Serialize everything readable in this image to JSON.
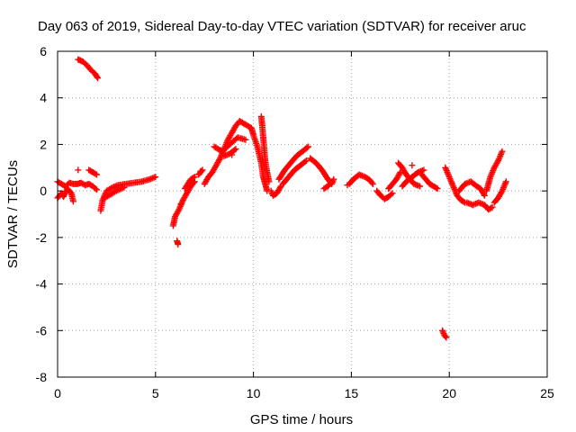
{
  "chart_data": {
    "type": "scatter",
    "title": "Day 063 of 2019, Sidereal Day-to-day VTEC variation (SDTVAR) for receiver aruc",
    "xlabel": "GPS time / hours",
    "ylabel": "SDTVAR / TECUs",
    "xlim": [
      0,
      25
    ],
    "ylim": [
      -8,
      6
    ],
    "xticks": [
      "0",
      "5",
      "10",
      "15",
      "20",
      "25"
    ],
    "yticks": [
      "-8",
      "-6",
      "-4",
      "-2",
      "0",
      "2",
      "4",
      "6"
    ],
    "grid": true,
    "marker": "plus",
    "color": "#ff0000",
    "series": [
      {
        "name": "SDTVAR",
        "segments": [
          [
            [
              0.0,
              0.4
            ],
            [
              0.2,
              0.3
            ],
            [
              0.4,
              0.2
            ],
            [
              0.6,
              0.35
            ],
            [
              0.8,
              0.3
            ],
            [
              1.0,
              0.3
            ],
            [
              1.2,
              0.35
            ],
            [
              1.4,
              0.25
            ],
            [
              1.6,
              0.3
            ],
            [
              1.8,
              0.2
            ],
            [
              2.0,
              0.05
            ]
          ],
          [
            [
              0.0,
              -0.3
            ],
            [
              0.2,
              -0.1
            ],
            [
              0.3,
              -0.25
            ],
            [
              0.5,
              0.1
            ],
            [
              0.7,
              -0.1
            ],
            [
              0.8,
              -0.45
            ]
          ],
          [
            [
              1.05,
              5.65
            ],
            [
              1.3,
              5.55
            ],
            [
              1.5,
              5.4
            ],
            [
              1.7,
              5.2
            ],
            [
              1.9,
              5.05
            ],
            [
              2.05,
              4.85
            ]
          ],
          [
            [
              1.6,
              0.9
            ],
            [
              1.8,
              0.8
            ],
            [
              2.0,
              0.7
            ]
          ],
          [
            [
              2.2,
              -0.85
            ],
            [
              2.3,
              -0.4
            ],
            [
              2.5,
              0.0
            ],
            [
              2.8,
              0.15
            ],
            [
              3.1,
              0.25
            ],
            [
              3.5,
              0.3
            ],
            [
              3.9,
              0.35
            ],
            [
              4.3,
              0.4
            ],
            [
              4.7,
              0.5
            ],
            [
              5.0,
              0.6
            ]
          ],
          [
            [
              2.4,
              -0.3
            ],
            [
              2.7,
              -0.15
            ],
            [
              3.0,
              0.0
            ],
            [
              3.4,
              0.15
            ]
          ],
          [
            [
              5.9,
              -1.5
            ],
            [
              6.0,
              -1.1
            ],
            [
              6.2,
              -0.8
            ],
            [
              6.4,
              -0.4
            ],
            [
              6.6,
              -0.1
            ],
            [
              6.8,
              0.2
            ],
            [
              7.0,
              0.4
            ]
          ],
          [
            [
              6.1,
              -2.15
            ],
            [
              6.15,
              -2.3
            ]
          ],
          [
            [
              6.5,
              0.1
            ],
            [
              6.8,
              0.5
            ],
            [
              7.0,
              0.6
            ]
          ],
          [
            [
              7.2,
              0.7
            ],
            [
              7.4,
              0.9
            ]
          ],
          [
            [
              7.5,
              0.3
            ],
            [
              7.7,
              0.6
            ],
            [
              7.9,
              0.8
            ],
            [
              8.1,
              1.1
            ],
            [
              8.3,
              1.4
            ],
            [
              8.5,
              1.8
            ],
            [
              8.7,
              2.2
            ],
            [
              8.9,
              2.5
            ],
            [
              9.1,
              2.8
            ],
            [
              9.3,
              3.0
            ],
            [
              9.5,
              2.9
            ],
            [
              9.7,
              2.8
            ],
            [
              9.9,
              2.7
            ],
            [
              10.0,
              2.4
            ],
            [
              10.2,
              1.9
            ],
            [
              10.4,
              1.2
            ],
            [
              10.5,
              0.6
            ],
            [
              10.6,
              0.3
            ],
            [
              10.7,
              0.0
            ]
          ],
          [
            [
              8.0,
              1.9
            ],
            [
              8.4,
              1.7
            ],
            [
              8.8,
              2.0
            ],
            [
              9.2,
              2.3
            ],
            [
              9.6,
              2.2
            ]
          ],
          [
            [
              8.5,
              1.5
            ],
            [
              8.8,
              1.6
            ],
            [
              9.1,
              1.8
            ]
          ],
          [
            [
              10.4,
              3.2
            ],
            [
              10.45,
              2.8
            ],
            [
              10.5,
              2.3
            ],
            [
              10.55,
              1.8
            ],
            [
              10.6,
              1.3
            ],
            [
              10.7,
              0.8
            ],
            [
              10.8,
              0.4
            ]
          ],
          [
            [
              10.9,
              0.0
            ],
            [
              11.0,
              -0.2
            ],
            [
              11.2,
              -0.1
            ],
            [
              11.4,
              0.2
            ]
          ],
          [
            [
              11.3,
              0.5
            ],
            [
              11.6,
              0.9
            ],
            [
              11.9,
              1.2
            ],
            [
              12.2,
              1.5
            ],
            [
              12.5,
              1.7
            ],
            [
              12.8,
              1.9
            ]
          ],
          [
            [
              11.5,
              0.3
            ],
            [
              11.8,
              0.6
            ],
            [
              12.1,
              0.9
            ],
            [
              12.4,
              1.1
            ],
            [
              12.7,
              1.3
            ]
          ],
          [
            [
              12.9,
              1.4
            ],
            [
              13.2,
              1.2
            ],
            [
              13.5,
              0.9
            ],
            [
              13.8,
              0.5
            ],
            [
              14.0,
              0.3
            ],
            [
              14.1,
              0.5
            ]
          ],
          [
            [
              13.6,
              0.1
            ],
            [
              13.8,
              0.2
            ],
            [
              14.0,
              0.4
            ]
          ],
          [
            [
              14.9,
              0.3
            ],
            [
              15.1,
              0.5
            ],
            [
              15.4,
              0.7
            ],
            [
              15.7,
              0.6
            ],
            [
              15.9,
              0.5
            ],
            [
              16.1,
              0.3
            ]
          ],
          [
            [
              16.3,
              0.0
            ],
            [
              16.5,
              -0.2
            ],
            [
              16.7,
              -0.35
            ],
            [
              16.9,
              -0.25
            ],
            [
              17.1,
              -0.1
            ]
          ],
          [
            [
              16.9,
              0.1
            ],
            [
              17.1,
              0.3
            ],
            [
              17.3,
              0.5
            ],
            [
              17.5,
              0.8
            ]
          ],
          [
            [
              17.4,
              1.2
            ],
            [
              17.6,
              1.0
            ],
            [
              17.8,
              0.7
            ],
            [
              18.0,
              0.5
            ],
            [
              18.2,
              0.3
            ],
            [
              18.5,
              0.2
            ]
          ],
          [
            [
              17.6,
              0.2
            ],
            [
              17.8,
              0.4
            ],
            [
              18.1,
              0.6
            ],
            [
              18.4,
              0.8
            ],
            [
              18.7,
              0.9
            ]
          ],
          [
            [
              18.6,
              0.7
            ],
            [
              18.8,
              0.5
            ],
            [
              19.0,
              0.3
            ],
            [
              19.2,
              0.2
            ],
            [
              19.4,
              0.1
            ]
          ],
          [
            [
              19.8,
              1.0
            ],
            [
              20.0,
              0.6
            ],
            [
              20.2,
              0.2
            ],
            [
              20.4,
              -0.2
            ],
            [
              20.6,
              -0.4
            ],
            [
              20.8,
              -0.5
            ]
          ],
          [
            [
              20.5,
              0.0
            ],
            [
              20.8,
              0.3
            ],
            [
              21.1,
              0.4
            ],
            [
              21.4,
              0.2
            ],
            [
              21.6,
              0.1
            ],
            [
              21.8,
              -0.2
            ]
          ],
          [
            [
              20.9,
              -0.5
            ],
            [
              21.2,
              -0.6
            ],
            [
              21.5,
              -0.5
            ],
            [
              21.8,
              -0.6
            ],
            [
              22.0,
              -0.8
            ],
            [
              22.2,
              -0.7
            ]
          ],
          [
            [
              21.9,
              0.0
            ],
            [
              22.1,
              0.6
            ],
            [
              22.3,
              1.0
            ],
            [
              22.5,
              1.3
            ],
            [
              22.7,
              1.7
            ]
          ],
          [
            [
              22.3,
              -0.5
            ],
            [
              22.5,
              -0.3
            ],
            [
              22.7,
              0.0
            ],
            [
              22.9,
              0.4
            ]
          ],
          [
            [
              19.65,
              -6.0
            ],
            [
              19.75,
              -6.2
            ],
            [
              19.85,
              -6.3
            ]
          ]
        ],
        "isolated_points": [
          [
            1.05,
            0.9
          ],
          [
            6.3,
            -0.55
          ],
          [
            7.3,
            0.85
          ],
          [
            8.9,
            1.55
          ],
          [
            14.8,
            0.25
          ],
          [
            18.1,
            1.1
          ]
        ]
      }
    ]
  }
}
